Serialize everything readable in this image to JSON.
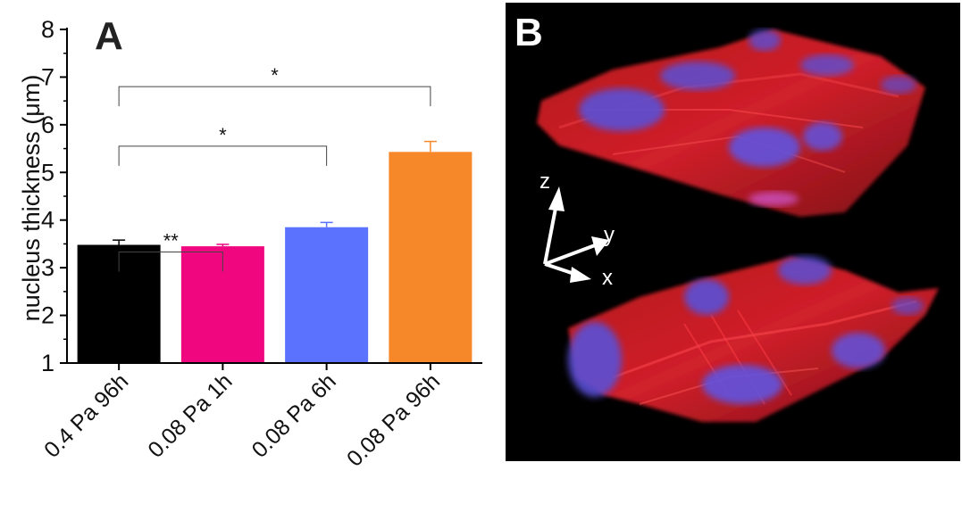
{
  "chart_data": {
    "type": "bar",
    "panel_label": "A",
    "title": "",
    "xlabel": "",
    "ylabel": "nucleus thickness (μm)",
    "ylim": [
      1,
      8
    ],
    "yticks": [
      "1",
      "2",
      "3",
      "4",
      "5",
      "6",
      "7",
      "8"
    ],
    "categories": [
      "0.4 Pa 96h",
      "0.08 Pa 1h",
      "0.08 Pa 6h",
      "0.08 Pa 96h"
    ],
    "values": [
      3.48,
      3.45,
      3.85,
      5.43
    ],
    "errors": [
      0.1,
      0.04,
      0.1,
      0.22
    ],
    "colors": [
      "#000000",
      "#f0067f",
      "#5b72ff",
      "#f7882a"
    ],
    "significance": [
      {
        "from": 0,
        "to": 1,
        "label": "**",
        "level": 3.33
      },
      {
        "from": 0,
        "to": 2,
        "label": "*",
        "level": 5.55
      },
      {
        "from": 0,
        "to": 3,
        "label": "*",
        "level": 6.8
      }
    ]
  },
  "panel_b": {
    "label": "B",
    "axes": {
      "z": "z",
      "y": "y",
      "x": "x"
    }
  }
}
